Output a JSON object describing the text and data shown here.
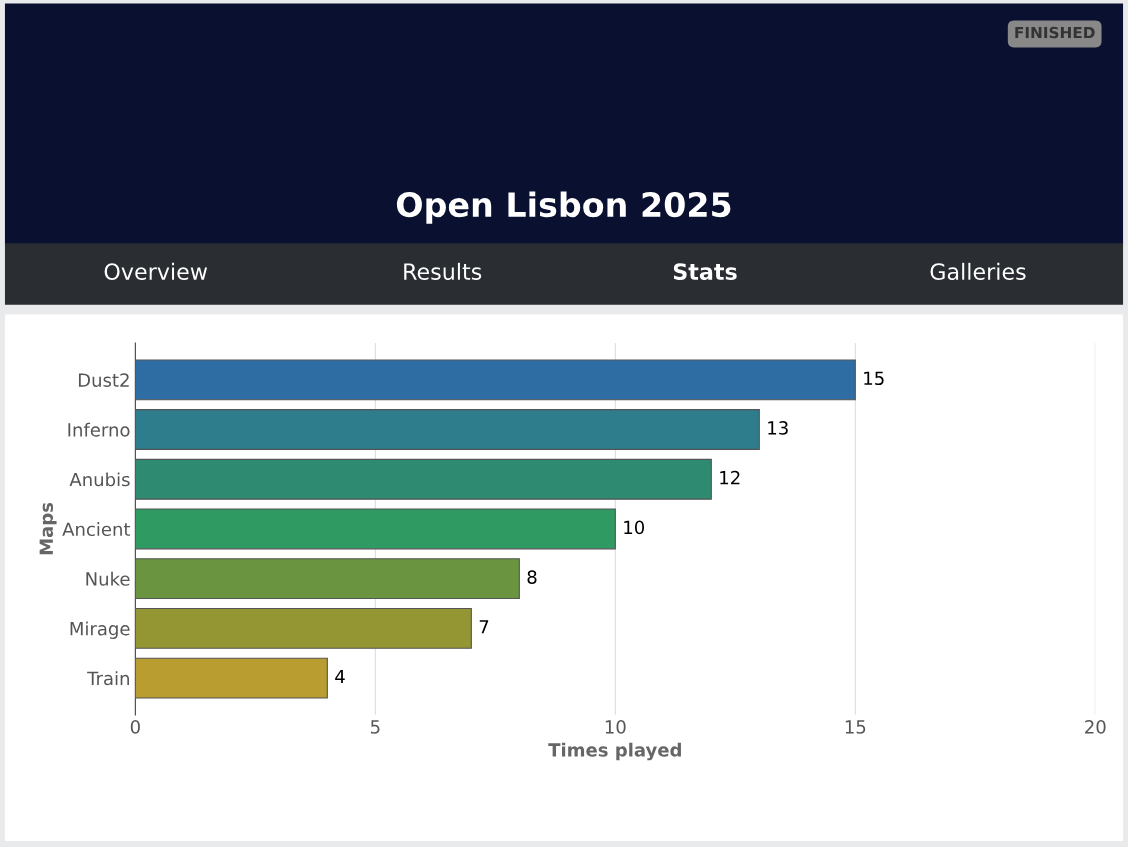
{
  "chart_data": {
    "type": "bar",
    "orientation": "horizontal",
    "title": "Open Lisbon 2025",
    "annotations": [
      "FINISHED",
      "Overview",
      "Results",
      "Stats",
      "Galleries"
    ],
    "categories": [
      "Dust2",
      "Inferno",
      "Anubis",
      "Ancient",
      "Nuke",
      "Mirage",
      "Train"
    ],
    "values": [
      15,
      13,
      12,
      10,
      8,
      7,
      4
    ],
    "colors": [
      "#2e6da4",
      "#2e7d8c",
      "#2e8b72",
      "#2f9a62",
      "#6a9440",
      "#949633",
      "#b99d31"
    ],
    "xlabel": "Times played",
    "ylabel": "Maps",
    "xlim": [
      0,
      20
    ],
    "xticks": [
      0,
      5,
      10,
      15,
      20
    ],
    "grid": "x",
    "data_labels": true
  }
}
